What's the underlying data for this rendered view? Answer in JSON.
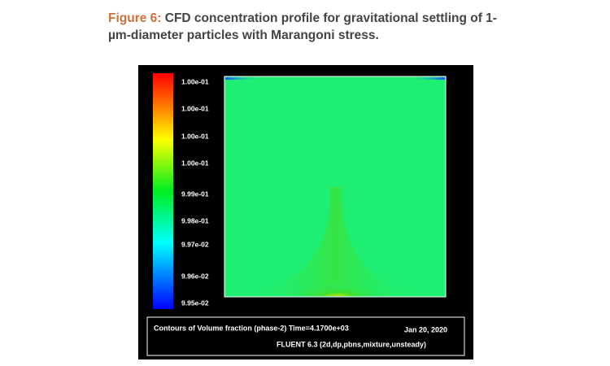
{
  "figure": {
    "label": "Figure 6:",
    "caption": "CFD concentration profile for gravitational settling of 1-µm-diameter particles with Marangoni stress.",
    "colorbar_labels": [
      "1.00e-01",
      "1.00e-01",
      "1.00e-01",
      "1.00e-01",
      "9.99e-01",
      "9.98e-01",
      "9.97e-02",
      "9.96e-02",
      "9.95e-02"
    ],
    "info": {
      "contour": "Contours of Volume fraction (phase-2) Time=4.1700e+03",
      "date": "Jan 20, 2020",
      "solver": "FLUENT 6.3 (2d,dp,pbns,mixture,unsteady)"
    }
  }
}
